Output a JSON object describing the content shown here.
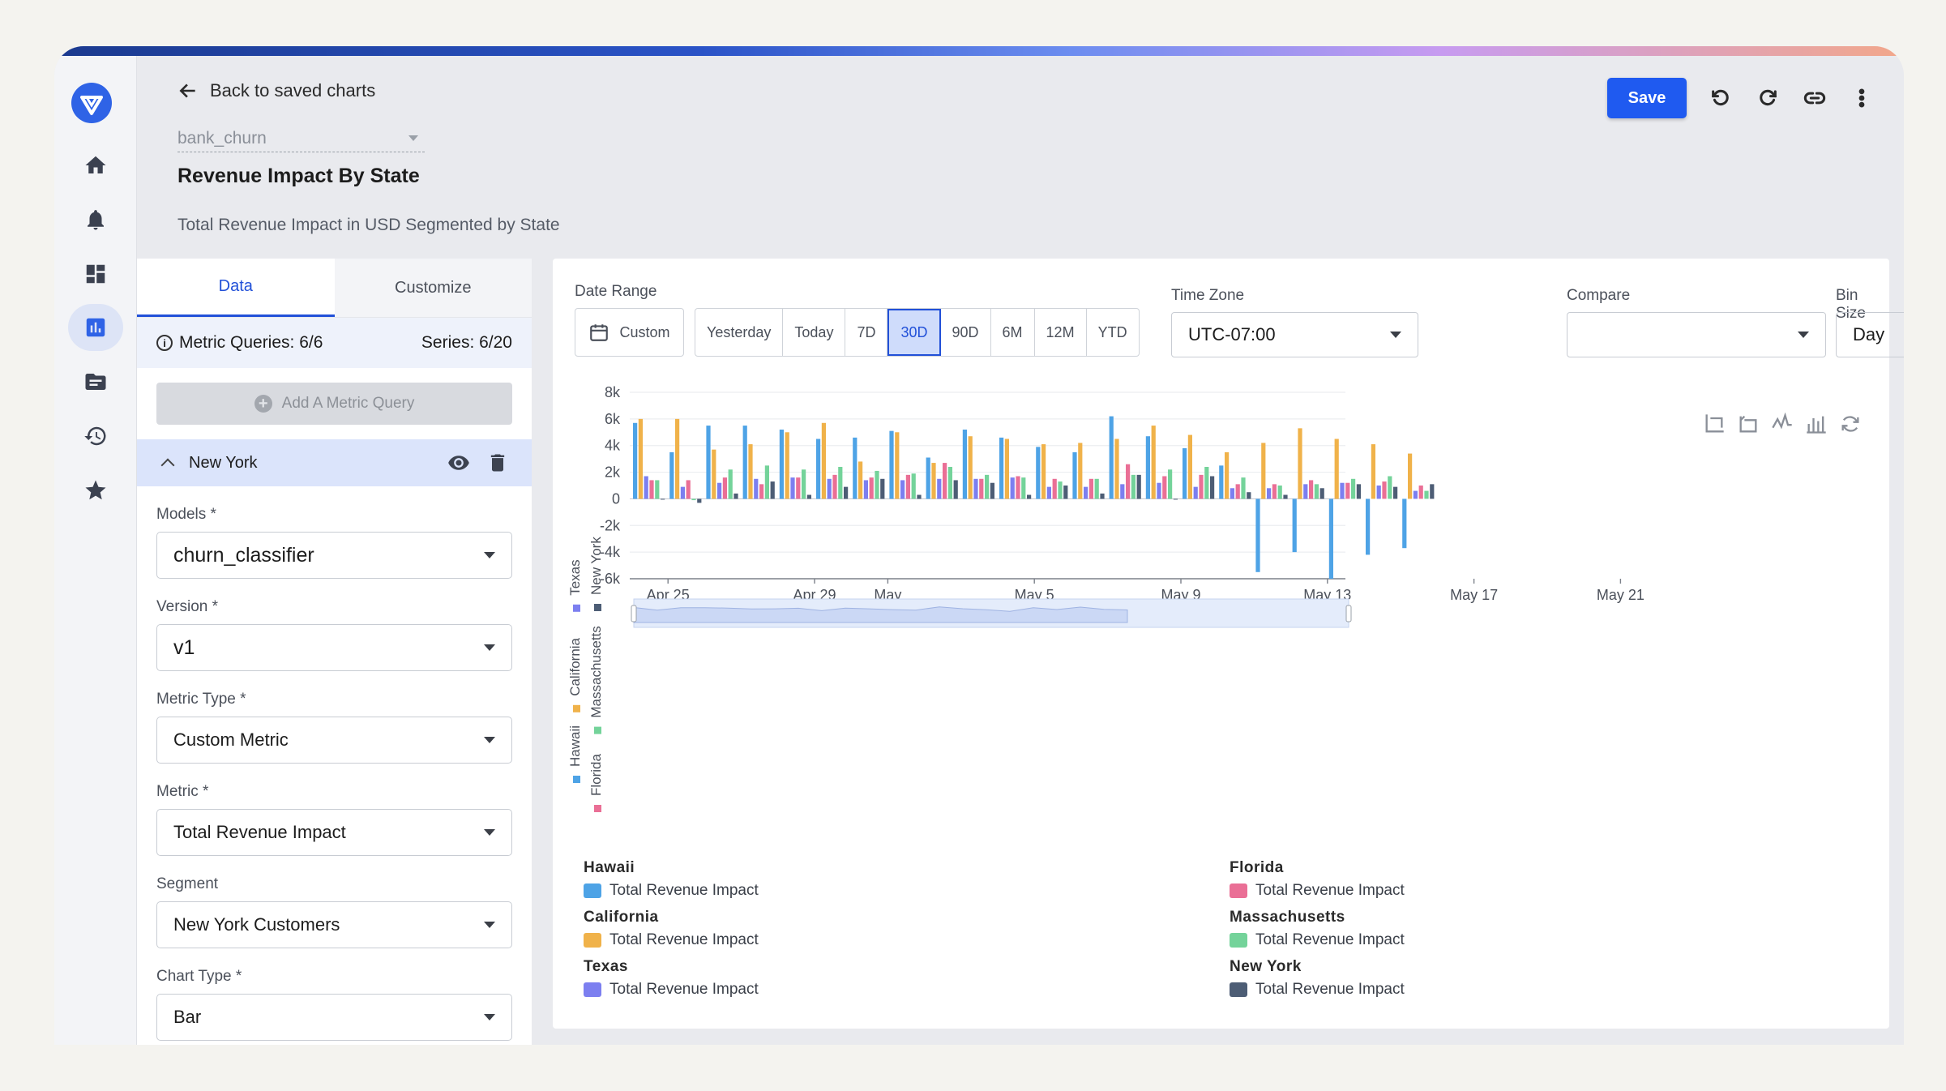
{
  "nav": {
    "back_label": "Back to saved charts",
    "model_name": "bank_churn",
    "title": "Revenue Impact By State",
    "subtitle": "Total Revenue Impact in USD Segmented by State",
    "save_label": "Save"
  },
  "sidebar_icons": [
    "home-icon",
    "bell-icon",
    "dashboard-icon",
    "chart-icon",
    "folder-icon",
    "history-icon",
    "star-icon"
  ],
  "left_panel": {
    "tabs": [
      "Data",
      "Customize"
    ],
    "metric_queries_label": "Metric Queries: 6/6",
    "series_label": "Series: 6/20",
    "add_query_label": "Add A Metric Query",
    "query_name": "New York",
    "fields": {
      "models_label": "Models *",
      "models_value": "churn_classifier",
      "version_label": "Version *",
      "version_value": "v1",
      "metric_type_label": "Metric Type *",
      "metric_type_value": "Custom Metric",
      "metric_label": "Metric *",
      "metric_value": "Total Revenue Impact",
      "segment_label": "Segment",
      "segment_value": "New York Customers",
      "chart_type_label": "Chart Type *",
      "chart_type_value": "Bar"
    }
  },
  "controls": {
    "date_range_label": "Date Range",
    "custom_label": "Custom",
    "ranges": [
      "Yesterday",
      "Today",
      "7D",
      "30D",
      "90D",
      "6M",
      "12M",
      "YTD"
    ],
    "active_range": "30D",
    "time_zone_label": "Time Zone",
    "time_zone_value": "UTC-07:00",
    "compare_label": "Compare",
    "compare_value": "",
    "bin_size_label": "Bin Size",
    "bin_size_value": "Day"
  },
  "colors": {
    "Hawaii": "#4ea3e6",
    "California": "#f0b24a",
    "Texas": "#7c7ff0",
    "Florida": "#ea6f96",
    "Massachusetts": "#74d39a",
    "New York": "#4d5d75"
  },
  "chart_data": {
    "type": "bar",
    "ylim": [
      -6000,
      8000
    ],
    "yticks": [
      -6000,
      -4000,
      -2000,
      0,
      2000,
      4000,
      6000,
      8000
    ],
    "ytick_labels": [
      "-6k",
      "-4k",
      "-2k",
      "0",
      "2k",
      "4k",
      "6k",
      "8k"
    ],
    "x_start": "Apr 25",
    "xtick_labels": [
      "Apr 25",
      "Apr 29",
      "May",
      "May 5",
      "May 9",
      "May 13",
      "May 17",
      "May 21"
    ],
    "categories": [
      "Apr 24",
      "Apr 25",
      "Apr 26",
      "Apr 27",
      "Apr 28",
      "Apr 29",
      "Apr 30",
      "May 1",
      "May 2",
      "May 3",
      "May 4",
      "May 5",
      "May 6",
      "May 7",
      "May 8",
      "May 9",
      "May 10",
      "May 11",
      "May 12",
      "May 13",
      "May 14",
      "May 15"
    ],
    "series": [
      {
        "name": "Hawaii",
        "values": [
          5700,
          3500,
          5500,
          5500,
          5200,
          4500,
          4600,
          5100,
          3100,
          5200,
          4600,
          3900,
          3500,
          6200,
          4700,
          3800,
          2500,
          -5500,
          -4000,
          -6000,
          -4200,
          -3700
        ]
      },
      {
        "name": "California",
        "values": [
          6000,
          6000,
          3700,
          4100,
          5000,
          5700,
          2800,
          5000,
          2700,
          4700,
          4500,
          4100,
          4200,
          4500,
          5500,
          4800,
          3500,
          4200,
          5300,
          4500,
          4100,
          3400
        ]
      },
      {
        "name": "Texas",
        "values": [
          1700,
          900,
          1200,
          1500,
          1600,
          1500,
          1400,
          1400,
          1500,
          1500,
          1600,
          900,
          900,
          1100,
          1200,
          900,
          800,
          800,
          1100,
          1200,
          1000,
          600
        ]
      },
      {
        "name": "Florida",
        "values": [
          1400,
          1400,
          1600,
          1100,
          1600,
          1800,
          1600,
          1800,
          2700,
          1500,
          1700,
          1500,
          1500,
          2600,
          1700,
          1800,
          1100,
          1100,
          1400,
          1200,
          1300,
          1000
        ]
      },
      {
        "name": "Massachusetts",
        "values": [
          1400,
          -100,
          2200,
          2500,
          2200,
          2400,
          2100,
          1900,
          2400,
          1800,
          1600,
          1300,
          1500,
          1800,
          2200,
          2400,
          1600,
          1000,
          1100,
          1500,
          1700,
          600
        ]
      },
      {
        "name": "New York",
        "values": [
          0,
          -300,
          400,
          1300,
          300,
          900,
          1500,
          300,
          1400,
          1200,
          300,
          1000,
          400,
          1800,
          0,
          1700,
          500,
          300,
          800,
          1100,
          900,
          1100
        ]
      }
    ]
  },
  "legend": [
    {
      "state": "Hawaii",
      "label": "Total Revenue Impact"
    },
    {
      "state": "California",
      "label": "Total Revenue Impact"
    },
    {
      "state": "Texas",
      "label": "Total Revenue Impact"
    },
    {
      "state": "Florida",
      "label": "Total Revenue Impact"
    },
    {
      "state": "Massachusetts",
      "label": "Total Revenue Impact"
    },
    {
      "state": "New York",
      "label": "Total Revenue Impact"
    }
  ]
}
